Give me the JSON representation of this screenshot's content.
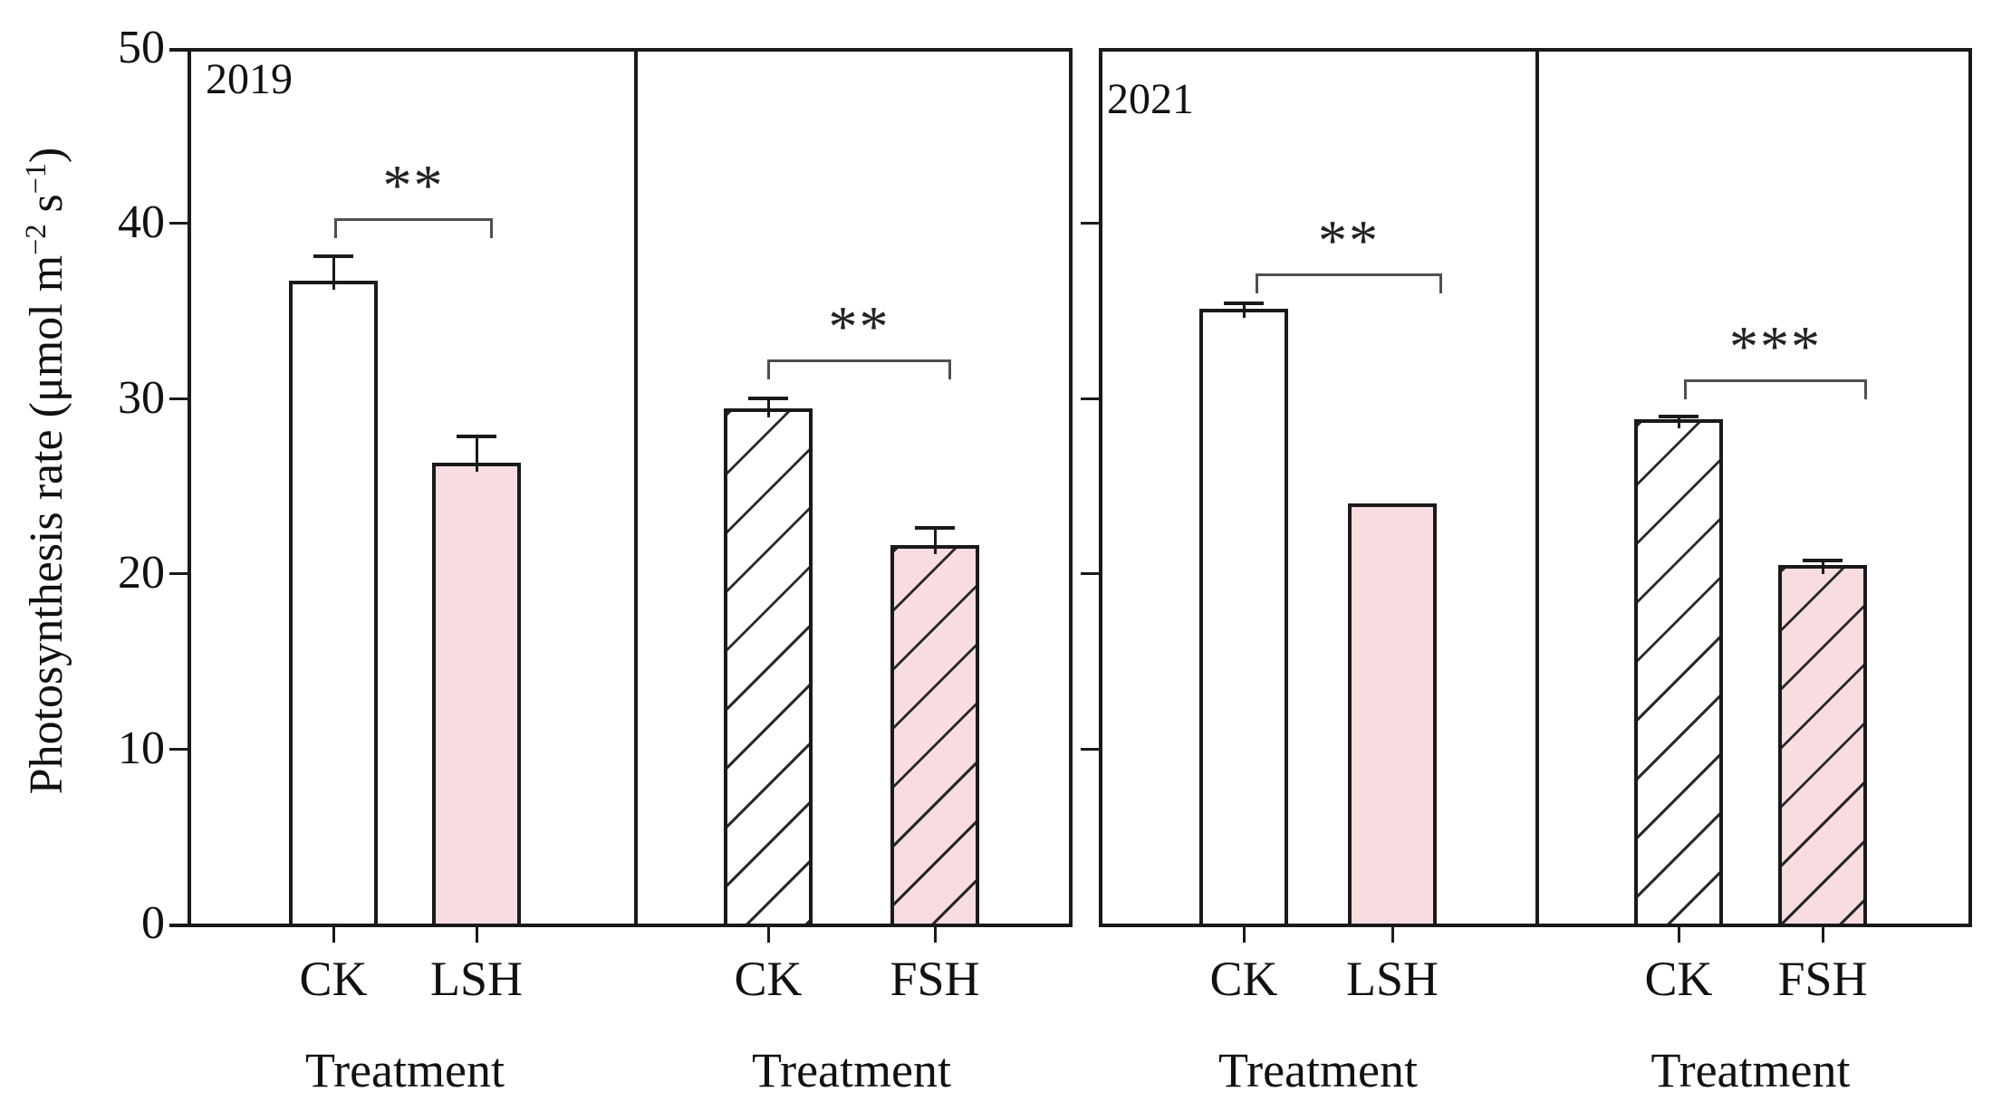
{
  "chart_data": {
    "type": "bar",
    "title": "",
    "ylabel": {
      "part1": "Photosynthesis rate (μmol m",
      "sup1": "−2",
      "part2": " s",
      "sup2": "−1",
      "part3": ")"
    },
    "xlabel": "Treatment",
    "ylim": [
      0,
      50
    ],
    "yticks": [
      0,
      10,
      20,
      30,
      40,
      50
    ],
    "grid": false,
    "legend": "none",
    "colors": {
      "control_fill": "#ffffff",
      "treatment_fill": "#f9dce0",
      "bar_border": "#1a1a1a",
      "bracket": "#4f4f4f",
      "text": "#111111"
    },
    "panels": [
      {
        "year": "2019",
        "xlabel": "Treatment",
        "hatched": false,
        "significance": "**",
        "categories": [
          "CK",
          "LSH"
        ],
        "bars": [
          {
            "label": "CK",
            "value": 36.7,
            "error": 1.4
          },
          {
            "label": "LSH",
            "value": 26.3,
            "error": 1.5
          }
        ]
      },
      {
        "year": "",
        "xlabel": "Treatment",
        "hatched": true,
        "significance": "**",
        "categories": [
          "CK",
          "FSH"
        ],
        "bars": [
          {
            "label": "CK",
            "value": 29.4,
            "error": 0.6
          },
          {
            "label": "FSH",
            "value": 21.6,
            "error": 1.0
          }
        ]
      },
      {
        "year": "2021",
        "xlabel": "Treatment",
        "hatched": false,
        "significance": "**",
        "categories": [
          "CK",
          "LSH"
        ],
        "bars": [
          {
            "label": "CK",
            "value": 35.1,
            "error": 0.3
          },
          {
            "label": "LSH",
            "value": 24.0,
            "error": 0
          }
        ]
      },
      {
        "year": "",
        "xlabel": "Treatment",
        "hatched": true,
        "significance": "***",
        "categories": [
          "CK",
          "FSH"
        ],
        "bars": [
          {
            "label": "CK",
            "value": 28.8,
            "error": 0.15
          },
          {
            "label": "FSH",
            "value": 20.5,
            "error": 0.25
          }
        ]
      }
    ]
  }
}
